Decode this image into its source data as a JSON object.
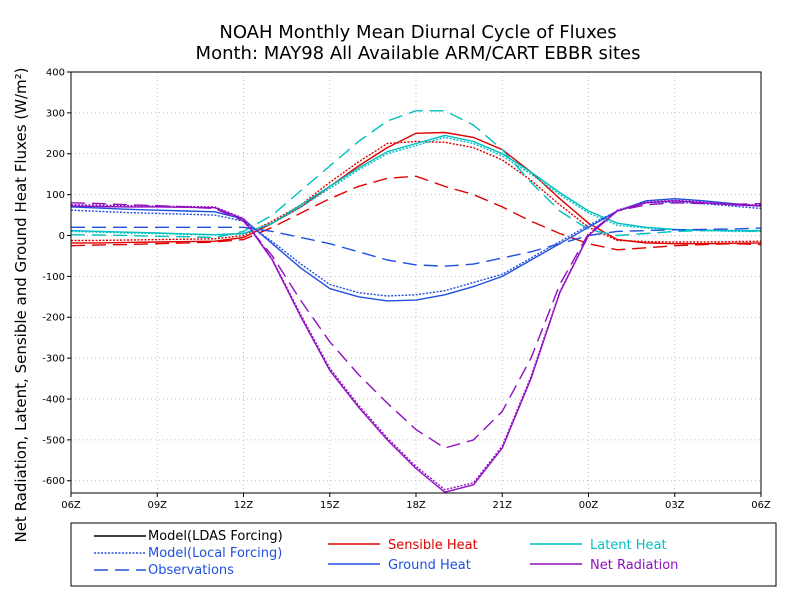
{
  "chart_data": {
    "type": "line",
    "title": "NOAH Monthly Mean Diurnal Cycle of Fluxes",
    "subtitle": "Month: MAY98 All Available ARM/CART EBBR sites",
    "ylabel": "Net Radiation, Latent, Sensible and Ground Heat Fluxes (W/m²)",
    "xlabel": "",
    "x_tick_labels": [
      "06Z",
      "09Z",
      "12Z",
      "15Z",
      "18Z",
      "21Z",
      "00Z",
      "03Z",
      "06Z"
    ],
    "x_range": [
      0,
      24
    ],
    "ylim": [
      -630,
      400
    ],
    "y_ticks": [
      400,
      300,
      200,
      100,
      0,
      -100,
      -200,
      -300,
      -400,
      -500,
      -600
    ],
    "grid": true,
    "legend_placement": "bottom",
    "x": [
      0,
      1,
      2,
      3,
      4,
      5,
      6,
      7,
      8,
      9,
      10,
      11,
      12,
      13,
      14,
      15,
      16,
      17,
      18,
      19,
      20,
      21,
      22,
      23,
      24
    ],
    "series": [
      {
        "variable": "Sensible Heat",
        "type": "Model(LDAS Forcing)",
        "color": "#e00000",
        "dash": "solid",
        "values": [
          -18,
          -18,
          -17,
          -16,
          -15,
          -14,
          -5,
          30,
          70,
          120,
          170,
          215,
          250,
          252,
          240,
          210,
          155,
          90,
          30,
          -10,
          -18,
          -20,
          -20,
          -19,
          -18
        ]
      },
      {
        "variable": "Sensible Heat",
        "type": "Model(Local Forcing)",
        "color": "#e00000",
        "dash": "dotted",
        "values": [
          -12,
          -12,
          -11,
          -10,
          -9,
          -8,
          0,
          35,
          75,
          130,
          180,
          225,
          230,
          228,
          215,
          185,
          135,
          75,
          20,
          -12,
          -15,
          -16,
          -16,
          -15,
          -14
        ]
      },
      {
        "variable": "Sensible Heat",
        "type": "Observations",
        "color": "#e00000",
        "dash": "dashed",
        "values": [
          -25,
          -23,
          -22,
          -20,
          -18,
          -16,
          -10,
          20,
          55,
          90,
          120,
          140,
          145,
          120,
          100,
          70,
          35,
          5,
          -20,
          -35,
          -30,
          -25,
          -22,
          -20,
          -22
        ]
      },
      {
        "variable": "Latent Heat",
        "type": "Model(LDAS Forcing)",
        "color": "#00c0c0",
        "dash": "solid",
        "values": [
          12,
          10,
          8,
          6,
          4,
          2,
          5,
          30,
          75,
          120,
          165,
          205,
          225,
          245,
          230,
          200,
          155,
          105,
          60,
          30,
          20,
          15,
          13,
          12,
          12
        ]
      },
      {
        "variable": "Latent Heat",
        "type": "Model(Local Forcing)",
        "color": "#00c0c0",
        "dash": "dotted",
        "values": [
          10,
          8,
          6,
          5,
          3,
          2,
          4,
          30,
          70,
          115,
          160,
          200,
          220,
          240,
          225,
          195,
          150,
          100,
          55,
          25,
          18,
          14,
          12,
          10,
          10
        ]
      },
      {
        "variable": "Latent Heat",
        "type": "Observations",
        "color": "#00c0c0",
        "dash": "dashed",
        "values": [
          2,
          1,
          0,
          -2,
          -3,
          -5,
          10,
          50,
          110,
          170,
          230,
          280,
          305,
          305,
          270,
          210,
          130,
          60,
          15,
          0,
          5,
          10,
          12,
          12,
          10
        ]
      },
      {
        "variable": "Ground Heat",
        "type": "Model(LDAS Forcing)",
        "color": "#2050e0",
        "dash": "solid",
        "values": [
          70,
          67,
          64,
          62,
          60,
          58,
          40,
          -20,
          -80,
          -130,
          -150,
          -160,
          -158,
          -145,
          -125,
          -100,
          -60,
          -20,
          20,
          60,
          85,
          90,
          85,
          78,
          72
        ]
      },
      {
        "variable": "Ground Heat",
        "type": "Model(Local Forcing)",
        "color": "#2050e0",
        "dash": "dotted",
        "values": [
          62,
          59,
          56,
          54,
          52,
          50,
          35,
          -15,
          -70,
          -120,
          -140,
          -148,
          -145,
          -135,
          -115,
          -95,
          -55,
          -15,
          25,
          60,
          80,
          82,
          78,
          72,
          66
        ]
      },
      {
        "variable": "Ground Heat",
        "type": "Observations",
        "color": "#2050e0",
        "dash": "dashed",
        "values": [
          20,
          20,
          20,
          20,
          20,
          20,
          20,
          10,
          -5,
          -20,
          -40,
          -60,
          -72,
          -75,
          -70,
          -55,
          -40,
          -20,
          0,
          10,
          12,
          14,
          15,
          16,
          18
        ]
      },
      {
        "variable": "Net Radiation",
        "type": "Model(LDAS Forcing)",
        "color": "#9010c0",
        "dash": "solid",
        "values": [
          72,
          71,
          70,
          70,
          69,
          68,
          40,
          -60,
          -200,
          -330,
          -420,
          -500,
          -570,
          -628,
          -610,
          -520,
          -350,
          -140,
          0,
          60,
          80,
          85,
          80,
          75,
          72
        ]
      },
      {
        "variable": "Net Radiation",
        "type": "Model(Local Forcing)",
        "color": "#9010c0",
        "dash": "dotted",
        "values": [
          75,
          74,
          73,
          72,
          71,
          70,
          42,
          -58,
          -195,
          -325,
          -415,
          -495,
          -565,
          -622,
          -605,
          -515,
          -345,
          -138,
          2,
          62,
          82,
          86,
          82,
          77,
          74
        ]
      },
      {
        "variable": "Net Radiation",
        "type": "Observations",
        "color": "#9010c0",
        "dash": "dashed",
        "values": [
          80,
          78,
          75,
          73,
          70,
          66,
          35,
          -50,
          -160,
          -260,
          -340,
          -410,
          -475,
          -520,
          -500,
          -430,
          -300,
          -120,
          5,
          60,
          75,
          80,
          78,
          76,
          78
        ]
      }
    ],
    "legend": {
      "types": [
        {
          "label": "Model(LDAS Forcing)",
          "color": "#000000",
          "dash": "solid"
        },
        {
          "label": "Model(Local Forcing)",
          "color": "#2050e0",
          "dash": "dotted"
        },
        {
          "label": "Observations",
          "color": "#2050e0",
          "dash": "dashed"
        }
      ],
      "variables": [
        {
          "label": "Sensible Heat",
          "color": "#e00000"
        },
        {
          "label": "Latent Heat",
          "color": "#00c0c0"
        },
        {
          "label": "Ground Heat",
          "color": "#2050e0"
        },
        {
          "label": "Net Radiation",
          "color": "#9010c0"
        }
      ]
    }
  }
}
